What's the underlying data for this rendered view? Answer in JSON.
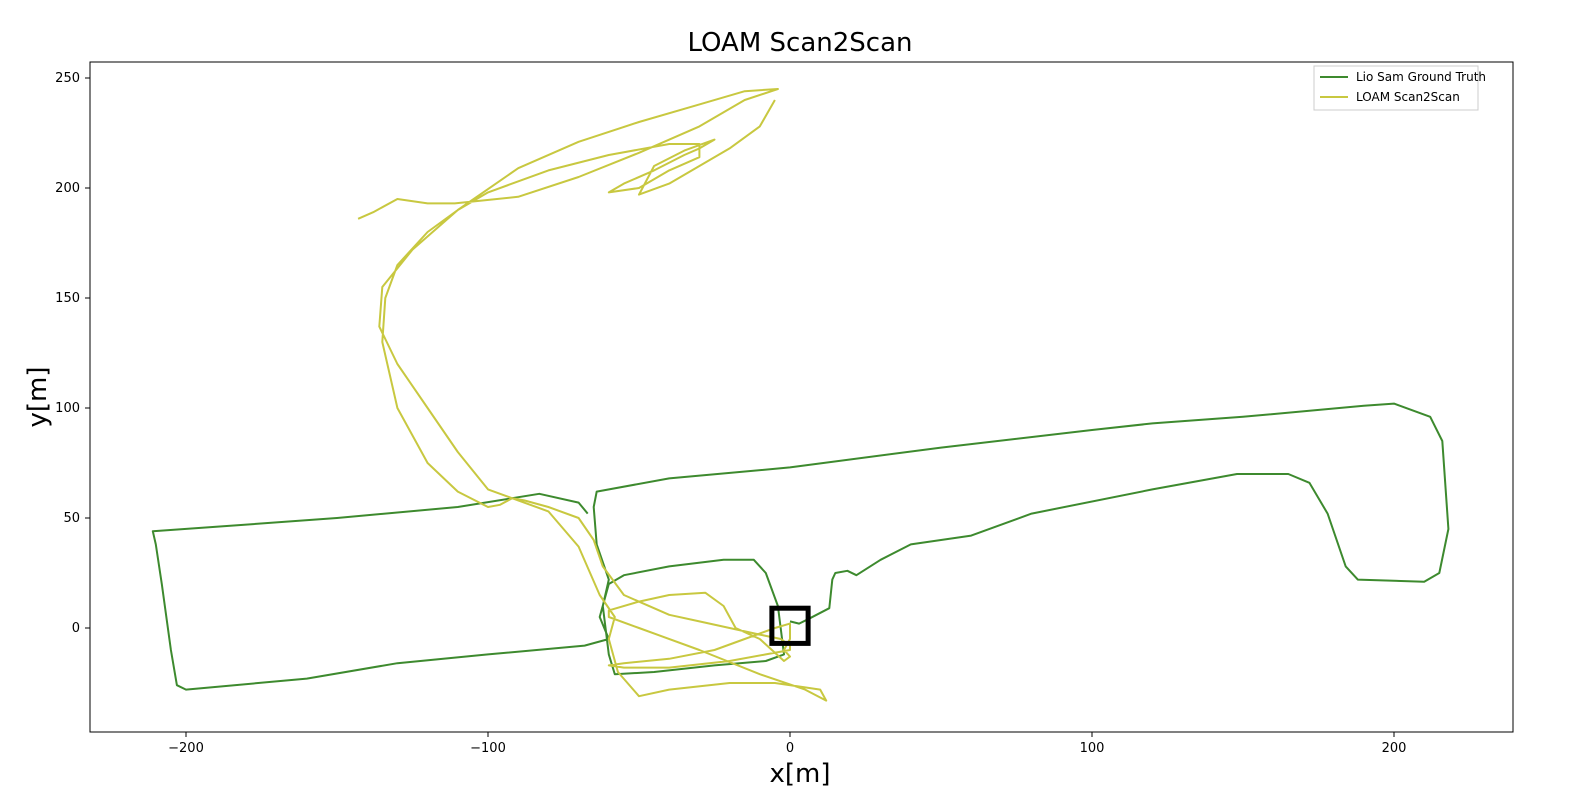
{
  "chart_data": {
    "type": "line",
    "title": "LOAM Scan2Scan",
    "xlabel": "x[m]",
    "ylabel": "y[m]",
    "xlim": [
      -234,
      240
    ],
    "ylim": [
      -47,
      259
    ],
    "xticks": [
      -200,
      -100,
      0,
      100,
      200
    ],
    "yticks": [
      0,
      50,
      100,
      150,
      200,
      250
    ],
    "xtick_labels": [
      "−200",
      "−100",
      "0",
      "100",
      "200"
    ],
    "ytick_labels": [
      "0",
      "50",
      "100",
      "150",
      "200",
      "250"
    ],
    "grid": false,
    "legend_position": "top-right",
    "series": [
      {
        "name": "Lio Sam Ground Truth",
        "color": "#3d8a2e",
        "points": [
          [
            0,
            3
          ],
          [
            3,
            2
          ],
          [
            6,
            4
          ],
          [
            13,
            9
          ],
          [
            14,
            22
          ],
          [
            15,
            25
          ],
          [
            19,
            26
          ],
          [
            22,
            24
          ],
          [
            30,
            31
          ],
          [
            40,
            38
          ],
          [
            60,
            42
          ],
          [
            80,
            52
          ],
          [
            120,
            63
          ],
          [
            148,
            70
          ],
          [
            165,
            70
          ],
          [
            172,
            66
          ],
          [
            178,
            52
          ],
          [
            184,
            28
          ],
          [
            188,
            22
          ],
          [
            210,
            21
          ],
          [
            215,
            25
          ],
          [
            218,
            45
          ],
          [
            216,
            85
          ],
          [
            212,
            96
          ],
          [
            200,
            102
          ],
          [
            190,
            101
          ],
          [
            150,
            96
          ],
          [
            120,
            93
          ],
          [
            100,
            90
          ],
          [
            50,
            82
          ],
          [
            0,
            73
          ],
          [
            -40,
            68
          ],
          [
            -64,
            62
          ],
          [
            -65,
            55
          ],
          [
            -64,
            38
          ],
          [
            -60,
            22
          ],
          [
            -62,
            10
          ],
          [
            -60,
            -12
          ],
          [
            -58,
            -21
          ],
          [
            -45,
            -20
          ],
          [
            -25,
            -17
          ],
          [
            -8,
            -15
          ],
          [
            -2,
            -12
          ],
          [
            -4,
            10
          ],
          [
            -8,
            25
          ],
          [
            -12,
            31
          ],
          [
            -22,
            31
          ],
          [
            -40,
            28
          ],
          [
            -55,
            24
          ],
          [
            -60,
            20
          ],
          [
            -63,
            5
          ],
          [
            -60,
            -5
          ],
          [
            -68,
            -8
          ],
          [
            -100,
            -12
          ],
          [
            -130,
            -16
          ],
          [
            -160,
            -23
          ],
          [
            -200,
            -28
          ],
          [
            -203,
            -26
          ],
          [
            -205,
            -10
          ],
          [
            -208,
            20
          ],
          [
            -210,
            38
          ],
          [
            -211,
            44
          ],
          [
            -190,
            46
          ],
          [
            -150,
            50
          ],
          [
            -110,
            55
          ],
          [
            -83,
            61
          ],
          [
            -70,
            57
          ],
          [
            -67,
            52
          ]
        ]
      },
      {
        "name": "LOAM Scan2Scan",
        "color": "#c8c840",
        "points": [
          [
            -143,
            186
          ],
          [
            -138,
            189
          ],
          [
            -130,
            195
          ],
          [
            -120,
            193
          ],
          [
            -111,
            193
          ],
          [
            -90,
            196
          ],
          [
            -70,
            205
          ],
          [
            -50,
            216
          ],
          [
            -30,
            228
          ],
          [
            -15,
            240
          ],
          [
            -4,
            245
          ],
          [
            -15,
            244
          ],
          [
            -30,
            238
          ],
          [
            -50,
            230
          ],
          [
            -70,
            221
          ],
          [
            -90,
            209
          ],
          [
            -110,
            190
          ],
          [
            -125,
            172
          ],
          [
            -135,
            155
          ],
          [
            -136,
            137
          ],
          [
            -130,
            120
          ],
          [
            -120,
            100
          ],
          [
            -110,
            80
          ],
          [
            -100,
            63
          ],
          [
            -90,
            58
          ],
          [
            -80,
            53
          ],
          [
            -70,
            37
          ],
          [
            -63,
            15
          ],
          [
            -58,
            5
          ],
          [
            -60,
            -5
          ],
          [
            -57,
            -20
          ],
          [
            -50,
            -31
          ],
          [
            -40,
            -28
          ],
          [
            -20,
            -25
          ],
          [
            -5,
            -25
          ],
          [
            5,
            -27
          ],
          [
            10,
            -28
          ],
          [
            12,
            -33
          ],
          [
            5,
            -28
          ],
          [
            -10,
            -21
          ],
          [
            -30,
            -10
          ],
          [
            -50,
            0
          ],
          [
            -60,
            5
          ],
          [
            -60,
            8
          ],
          [
            -50,
            12
          ],
          [
            -40,
            15
          ],
          [
            -28,
            16
          ],
          [
            -22,
            10
          ],
          [
            -18,
            0
          ],
          [
            -10,
            -5
          ],
          [
            -6,
            -10
          ],
          [
            -2,
            -15
          ],
          [
            0,
            -13
          ],
          [
            -2,
            -10
          ],
          [
            0,
            -5
          ],
          [
            0,
            2
          ],
          [
            -5,
            0
          ],
          [
            -15,
            -5
          ],
          [
            -25,
            -10
          ],
          [
            -40,
            -14
          ],
          [
            -55,
            -16
          ],
          [
            -60,
            -17
          ],
          [
            -55,
            -18
          ],
          [
            -40,
            -18
          ],
          [
            -20,
            -15
          ],
          [
            -8,
            -12
          ],
          [
            0,
            -10
          ],
          [
            0,
            -8
          ],
          [
            -3,
            -5
          ],
          [
            -10,
            -3
          ],
          [
            -20,
            0
          ],
          [
            -30,
            3
          ],
          [
            -40,
            6
          ],
          [
            -55,
            15
          ],
          [
            -62,
            28
          ],
          [
            -65,
            40
          ],
          [
            -70,
            50
          ],
          [
            -80,
            55
          ],
          [
            -88,
            58
          ],
          [
            -92,
            59
          ],
          [
            -96,
            56
          ],
          [
            -100,
            55
          ],
          [
            -110,
            62
          ],
          [
            -120,
            75
          ],
          [
            -130,
            100
          ],
          [
            -135,
            130
          ],
          [
            -134,
            150
          ],
          [
            -130,
            165
          ],
          [
            -120,
            180
          ],
          [
            -110,
            190
          ],
          [
            -100,
            198
          ],
          [
            -80,
            208
          ],
          [
            -60,
            215
          ],
          [
            -40,
            220
          ],
          [
            -30,
            220
          ],
          [
            -30,
            214
          ],
          [
            -40,
            208
          ],
          [
            -50,
            200
          ],
          [
            -60,
            198
          ],
          [
            -55,
            202
          ],
          [
            -45,
            208
          ],
          [
            -35,
            215
          ],
          [
            -30,
            218
          ],
          [
            -25,
            222
          ],
          [
            -35,
            217
          ],
          [
            -45,
            210
          ],
          [
            -50,
            197
          ],
          [
            -40,
            202
          ],
          [
            -30,
            210
          ],
          [
            -20,
            218
          ],
          [
            -10,
            228
          ],
          [
            -5,
            240
          ]
        ]
      }
    ]
  },
  "annotation": {
    "box_center": [
      0,
      1
    ],
    "box_size": [
      12,
      16
    ]
  }
}
